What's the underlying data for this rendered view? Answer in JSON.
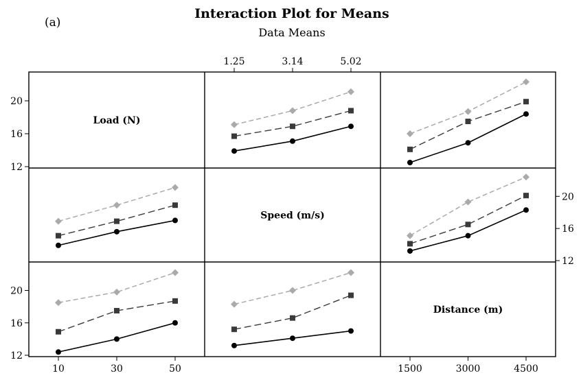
{
  "panel_tag": "(a)",
  "title": "Interaction Plot for Means",
  "subtitle": "Data Means",
  "colors": {
    "series_low": "#000000",
    "series_mid": "#3a3a3a",
    "series_high": "#aaaaaa"
  },
  "chart_data": {
    "type": "line",
    "title": "Interaction Plot for Means",
    "subtitle": "Data Means",
    "factors": [
      {
        "name": "Load (N)",
        "levels": [
          10,
          30,
          50
        ],
        "tick_labels": [
          "10",
          "30",
          "50"
        ]
      },
      {
        "name": "Speed (m/s)",
        "levels": [
          1.25,
          3.14,
          5.02
        ],
        "tick_labels": [
          "1.25",
          "3.14",
          "5.02"
        ]
      },
      {
        "name": "Distance (m)",
        "levels": [
          1500,
          3000,
          4500
        ],
        "tick_labels": [
          "1500",
          "3000",
          "4500"
        ]
      }
    ],
    "ylim": [
      12,
      22.5
    ],
    "y_ticks": [
      "12",
      "16",
      "20"
    ],
    "grid": false,
    "legend": "none",
    "panels": [
      {
        "row": 0,
        "col": 1,
        "x_factor": "Speed (m/s)",
        "trace_factor": "Load (N)",
        "x": [
          1.25,
          3.14,
          5.02
        ],
        "series": [
          {
            "level": 10,
            "style": "solid-circle",
            "values": [
              13.9,
              15.1,
              16.9
            ]
          },
          {
            "level": 30,
            "style": "dash-square",
            "values": [
              15.7,
              16.9,
              18.8
            ]
          },
          {
            "level": 50,
            "style": "lightdash-diamond",
            "values": [
              17.1,
              18.8,
              21.1
            ]
          }
        ]
      },
      {
        "row": 0,
        "col": 2,
        "x_factor": "Distance (m)",
        "trace_factor": "Load (N)",
        "x": [
          1500,
          3000,
          4500
        ],
        "series": [
          {
            "level": 10,
            "style": "solid-circle",
            "values": [
              12.5,
              14.9,
              18.4
            ]
          },
          {
            "level": 30,
            "style": "dash-square",
            "values": [
              14.1,
              17.5,
              19.9
            ]
          },
          {
            "level": 50,
            "style": "lightdash-diamond",
            "values": [
              16.0,
              18.7,
              22.3
            ]
          }
        ]
      },
      {
        "row": 1,
        "col": 0,
        "x_factor": "Load (N)",
        "trace_factor": "Speed (m/s)",
        "x": [
          10,
          30,
          50
        ],
        "series": [
          {
            "level": 1.25,
            "style": "solid-circle",
            "values": [
              13.9,
              15.6,
              17.0
            ]
          },
          {
            "level": 3.14,
            "style": "dash-square",
            "values": [
              15.1,
              16.9,
              18.9
            ]
          },
          {
            "level": 5.02,
            "style": "lightdash-diamond",
            "values": [
              16.9,
              18.9,
              21.1
            ]
          }
        ]
      },
      {
        "row": 1,
        "col": 2,
        "x_factor": "Distance (m)",
        "trace_factor": "Speed (m/s)",
        "x": [
          1500,
          3000,
          4500
        ],
        "series": [
          {
            "level": 1.25,
            "style": "solid-circle",
            "values": [
              13.2,
              15.1,
              18.3
            ]
          },
          {
            "level": 3.14,
            "style": "dash-square",
            "values": [
              14.1,
              16.5,
              20.1
            ]
          },
          {
            "level": 5.02,
            "style": "lightdash-diamond",
            "values": [
              15.1,
              19.3,
              22.4
            ]
          }
        ]
      },
      {
        "row": 2,
        "col": 0,
        "x_factor": "Load (N)",
        "trace_factor": "Distance (m)",
        "x": [
          10,
          30,
          50
        ],
        "series": [
          {
            "level": 1500,
            "style": "solid-circle",
            "values": [
              12.4,
              14.0,
              16.0
            ]
          },
          {
            "level": 3000,
            "style": "dash-square",
            "values": [
              14.9,
              17.5,
              18.7
            ]
          },
          {
            "level": 4500,
            "style": "lightdash-diamond",
            "values": [
              18.5,
              19.8,
              22.2
            ]
          }
        ]
      },
      {
        "row": 2,
        "col": 1,
        "x_factor": "Speed (m/s)",
        "trace_factor": "Distance (m)",
        "x": [
          1.25,
          3.14,
          5.02
        ],
        "series": [
          {
            "level": 1500,
            "style": "solid-circle",
            "values": [
              13.2,
              14.1,
              15.0
            ]
          },
          {
            "level": 3000,
            "style": "dash-square",
            "values": [
              15.2,
              16.6,
              19.4
            ]
          },
          {
            "level": 4500,
            "style": "lightdash-diamond",
            "values": [
              18.3,
              20.0,
              22.2
            ]
          }
        ]
      }
    ]
  }
}
